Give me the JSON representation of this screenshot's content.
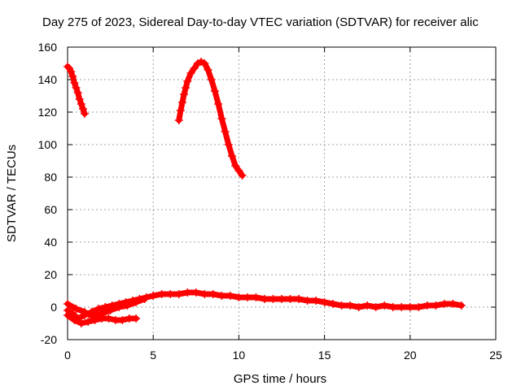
{
  "chart_data": {
    "type": "scatter",
    "title": "Day 275 of 2023, Sidereal Day-to-day VTEC variation (SDTVAR) for receiver alic",
    "xlabel": "GPS time / hours",
    "ylabel": "SDTVAR / TECUs",
    "xlim": [
      0,
      25
    ],
    "ylim": [
      -20,
      160
    ],
    "xticks": [
      0,
      5,
      10,
      15,
      20,
      25
    ],
    "yticks": [
      -20,
      0,
      20,
      40,
      60,
      80,
      100,
      120,
      140,
      160
    ],
    "grid": true,
    "marker": "+",
    "series": [
      {
        "name": "SDTVAR",
        "color": "#ff0000",
        "segments": [
          {
            "x": [
              0.0,
              0.1,
              0.2,
              0.3,
              0.4,
              0.5,
              0.6,
              0.7,
              0.8,
              0.9,
              1.0
            ],
            "y": [
              148,
              147,
              145,
              142,
              138,
              135,
              132,
              128,
              125,
              122,
              119
            ]
          },
          {
            "x": [
              6.5,
              6.6,
              6.7,
              6.8,
              6.9,
              7.0,
              7.2,
              7.4,
              7.6,
              7.8,
              8.0,
              8.2,
              8.4,
              8.6,
              8.8,
              9.0,
              9.2,
              9.4,
              9.6,
              9.8,
              10.0,
              10.2
            ],
            "y": [
              115,
              121,
              126,
              131,
              135,
              139,
              144,
              147,
              150,
              151,
              150,
              146,
              140,
              133,
              125,
              116,
              108,
              100,
              93,
              87,
              84,
              81
            ]
          },
          {
            "x": [
              0.0,
              0.3,
              0.6,
              1.0,
              1.4,
              1.8,
              2.2,
              2.6,
              3.0,
              3.4,
              3.8,
              4.2,
              4.6,
              5.0,
              5.5,
              6.0,
              6.5,
              7.0,
              7.5,
              8.0,
              8.5,
              9.0,
              9.5,
              10.0,
              10.5,
              11.0,
              11.5,
              12.0,
              12.5,
              13.0,
              13.5,
              14.0,
              14.5,
              15.0,
              15.5,
              16.0,
              16.5,
              17.0,
              17.5,
              18.0,
              18.5,
              19.0,
              19.5,
              20.0,
              20.5,
              21.0,
              21.5,
              22.0,
              22.5,
              23.0
            ],
            "y": [
              -2,
              -4,
              -7,
              -5,
              -3,
              -1,
              0,
              1,
              2,
              3,
              4,
              5,
              6,
              7,
              8,
              8,
              8,
              9,
              9,
              8,
              8,
              7,
              7,
              6,
              6,
              6,
              5,
              5,
              5,
              5,
              5,
              4,
              4,
              3,
              2,
              1,
              1,
              0,
              1,
              0,
              1,
              0,
              0,
              0,
              0,
              1,
              1,
              2,
              2,
              1
            ]
          },
          {
            "x": [
              0.0,
              0.4,
              0.8,
              1.2,
              1.6,
              2.0,
              2.4,
              2.8,
              3.2,
              3.6,
              4.0
            ],
            "y": [
              -5,
              -8,
              -10,
              -9,
              -8,
              -7,
              -7,
              -8,
              -8,
              -7,
              -7
            ]
          },
          {
            "x": [
              0.0,
              0.5,
              1.0,
              1.5,
              2.0,
              2.5,
              3.0,
              3.5,
              4.0,
              4.5
            ],
            "y": [
              2,
              -1,
              -3,
              -6,
              -4,
              -2,
              0,
              1,
              3,
              5
            ]
          }
        ]
      }
    ]
  }
}
